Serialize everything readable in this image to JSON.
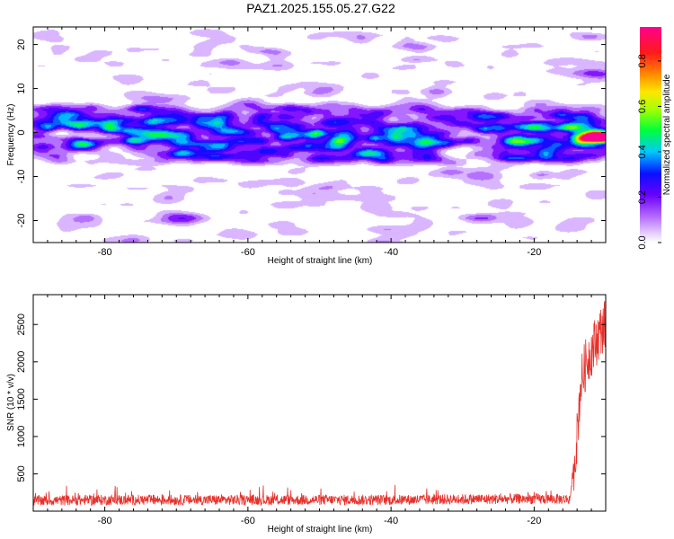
{
  "title": "PAZ1.2025.155.05.27.G22",
  "chart_data": [
    {
      "type": "heatmap",
      "xlabel": "Height of straight line (km)",
      "ylabel": "Frequency (Hz)",
      "xlim": [
        -90,
        -10
      ],
      "ylim": [
        -25,
        24
      ],
      "xticks": [
        "-80",
        "-60",
        "-40",
        "-20"
      ],
      "xtick_values": [
        -80,
        -60,
        -40,
        -20
      ],
      "yticks": [
        "-20",
        "-10",
        "0",
        "10",
        "20"
      ],
      "ytick_values": [
        -20,
        -10,
        0,
        10,
        20
      ],
      "colorbar": {
        "label": "Normalized spectral amplitude",
        "range": [
          0,
          0.95
        ],
        "ticks": [
          "0.0",
          "0.2",
          "0.4",
          "0.6",
          "0.8"
        ],
        "tick_values": [
          0,
          0.2,
          0.4,
          0.6,
          0.8
        ],
        "colormap": "rainbow (white-purple-blue-cyan-green-yellow-orange-red-magenta)"
      },
      "features": {
        "main_band": {
          "center_hz": 0,
          "halfwidth_hz": 4,
          "x_range": [
            -90,
            -10
          ],
          "typical_amplitude": 0.15
        },
        "peak": {
          "x": -10.5,
          "y": -0.8,
          "amplitude": 0.9
        },
        "secondary_hotspots": [
          {
            "x": -88,
            "y": 1.5,
            "amplitude": 0.25
          },
          {
            "x": -50.5,
            "y": 0.5,
            "amplitude": 0.3
          },
          {
            "x": -47.5,
            "y": -1.5,
            "amplitude": 0.3
          },
          {
            "x": -42.5,
            "y": -1.0,
            "amplitude": 0.28
          },
          {
            "x": -23.5,
            "y": -1.5,
            "amplitude": 0.25
          },
          {
            "x": -14,
            "y": -1.5,
            "amplitude": 0.3
          }
        ]
      }
    },
    {
      "type": "line",
      "xlabel": "Height of straight line (km)",
      "ylabel": "SNR (10 * v/v)",
      "xlim": [
        -90,
        -10
      ],
      "ylim": [
        0,
        2900
      ],
      "xticks": [
        "-80",
        "-60",
        "-40",
        "-20"
      ],
      "xtick_values": [
        -80,
        -60,
        -40,
        -20
      ],
      "yticks": [
        "500",
        "1000",
        "1500",
        "2000",
        "2500"
      ],
      "ytick_values": [
        500,
        1000,
        1500,
        2000,
        2500
      ],
      "color": "#e8302a",
      "series": [
        {
          "x": [
            -90,
            -80,
            -70,
            -60,
            -50,
            -40,
            -30,
            -20,
            -15,
            -14,
            -13.5,
            -13,
            -12.5,
            -12,
            -11.5,
            -11,
            -10.5,
            -10
          ],
          "y": [
            140,
            150,
            150,
            150,
            150,
            150,
            160,
            165,
            160,
            1000,
            1700,
            1900,
            2050,
            2150,
            2250,
            2350,
            2450,
            2500
          ]
        }
      ],
      "noise_amplitude": 70
    }
  ]
}
